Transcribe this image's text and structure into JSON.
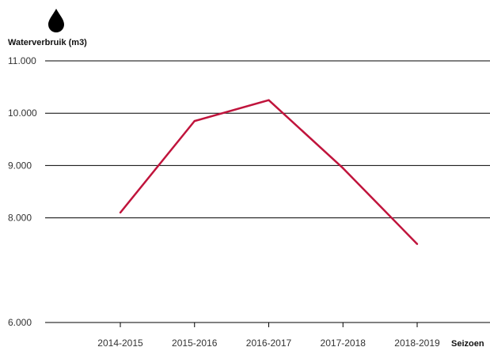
{
  "chart_data": {
    "type": "line",
    "title": "",
    "ylabel": "Waterverbruik (m3)",
    "xlabel": "Seizoen",
    "categories": [
      "2014-2015",
      "2015-2016",
      "2016-2017",
      "2017-2018",
      "2018-2019"
    ],
    "series": [
      {
        "values": [
          8100,
          9850,
          10250,
          8950,
          7500
        ],
        "color": "#c0143c"
      }
    ],
    "ylim": [
      6000,
      11000
    ],
    "y_ticks": [
      6000,
      8000,
      9000,
      10000,
      11000
    ],
    "y_tick_labels": [
      "6.000",
      "8.000",
      "9.000",
      "10.000",
      "11.000"
    ],
    "grid": true,
    "icon": "water-drop-icon"
  }
}
